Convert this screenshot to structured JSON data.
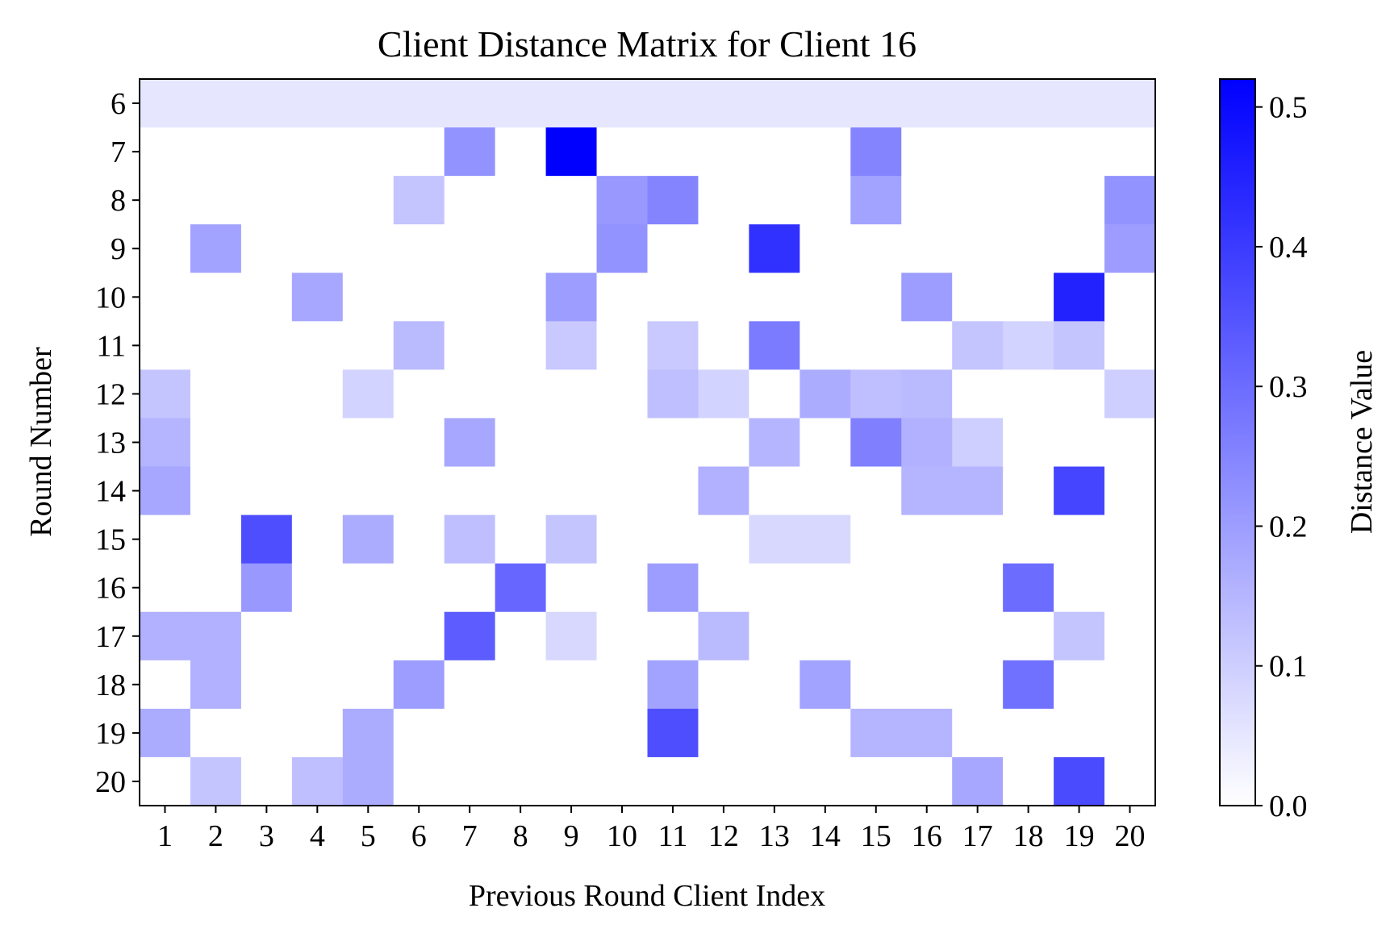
{
  "chart_data": {
    "type": "heatmap",
    "title": "Client Distance Matrix for Client 16",
    "xlabel": "Previous Round Client Index",
    "ylabel": "Round Number",
    "x_categories": [
      "1",
      "2",
      "3",
      "4",
      "5",
      "6",
      "7",
      "8",
      "9",
      "10",
      "11",
      "12",
      "13",
      "14",
      "15",
      "16",
      "17",
      "18",
      "19",
      "20"
    ],
    "y_categories": [
      "6",
      "7",
      "8",
      "9",
      "10",
      "11",
      "12",
      "13",
      "14",
      "15",
      "16",
      "17",
      "18",
      "19",
      "20"
    ],
    "values": [
      [
        0.05,
        0.05,
        0.05,
        0.05,
        0.05,
        0.05,
        0.05,
        0.05,
        0.05,
        0.05,
        0.05,
        0.05,
        0.05,
        0.05,
        0.05,
        0.05,
        0.05,
        0.05,
        0.05,
        0.05
      ],
      [
        0,
        0,
        0,
        0,
        0,
        0,
        0.22,
        0,
        0.52,
        0,
        0,
        0,
        0,
        0,
        0.25,
        0,
        0,
        0,
        0,
        0
      ],
      [
        0,
        0,
        0,
        0,
        0,
        0.12,
        0,
        0,
        0,
        0.21,
        0.25,
        0,
        0,
        0,
        0.19,
        0,
        0,
        0,
        0,
        0.22
      ],
      [
        0,
        0.19,
        0,
        0,
        0,
        0,
        0,
        0,
        0,
        0.22,
        0,
        0,
        0.42,
        0,
        0,
        0,
        0,
        0,
        0,
        0.2
      ],
      [
        0,
        0,
        0,
        0.18,
        0,
        0,
        0,
        0,
        0.2,
        0,
        0,
        0,
        0,
        0,
        0,
        0.2,
        0,
        0,
        0.45,
        0
      ],
      [
        0,
        0,
        0,
        0,
        0,
        0.14,
        0,
        0,
        0.11,
        0,
        0.11,
        0,
        0.27,
        0,
        0,
        0,
        0.12,
        0.09,
        0.12,
        0
      ],
      [
        0.12,
        0,
        0,
        0,
        0.09,
        0,
        0,
        0,
        0,
        0,
        0.13,
        0.09,
        0,
        0.17,
        0.13,
        0.14,
        0,
        0,
        0,
        0.1
      ],
      [
        0.15,
        0,
        0,
        0,
        0,
        0,
        0.18,
        0,
        0,
        0,
        0,
        0,
        0.15,
        0,
        0.26,
        0.16,
        0.1,
        0,
        0,
        0
      ],
      [
        0.18,
        0,
        0,
        0,
        0,
        0,
        0,
        0,
        0,
        0,
        0,
        0.16,
        0,
        0,
        0,
        0.15,
        0.15,
        0,
        0.38,
        0
      ],
      [
        0,
        0,
        0.36,
        0,
        0.17,
        0,
        0.13,
        0,
        0.12,
        0,
        0,
        0,
        0.08,
        0.08,
        0,
        0,
        0,
        0,
        0,
        0
      ],
      [
        0,
        0,
        0.21,
        0,
        0,
        0,
        0,
        0.31,
        0,
        0,
        0.2,
        0,
        0,
        0,
        0,
        0,
        0,
        0.3,
        0,
        0
      ],
      [
        0.16,
        0.16,
        0,
        0,
        0,
        0,
        0.33,
        0,
        0.08,
        0,
        0,
        0.14,
        0,
        0,
        0,
        0,
        0,
        0,
        0.12,
        0
      ],
      [
        0,
        0.16,
        0,
        0,
        0,
        0.2,
        0,
        0,
        0,
        0,
        0.19,
        0,
        0,
        0.19,
        0,
        0,
        0,
        0.29,
        0,
        0
      ],
      [
        0.17,
        0,
        0,
        0,
        0.17,
        0,
        0,
        0,
        0,
        0,
        0.36,
        0,
        0,
        0,
        0.15,
        0.15,
        0,
        0,
        0,
        0
      ],
      [
        0,
        0.12,
        0,
        0.13,
        0.17,
        0,
        0,
        0,
        0,
        0,
        0,
        0,
        0,
        0,
        0,
        0,
        0.18,
        0,
        0.37,
        0
      ]
    ],
    "colorbar": {
      "label": "Distance Value",
      "min": 0,
      "max": 0.52,
      "ticks": [
        0,
        0.1,
        0.2,
        0.3,
        0.4,
        0.5
      ],
      "tick_labels": [
        "0.0",
        "0.1",
        "0.2",
        "0.3",
        "0.4",
        "0.5"
      ],
      "color_low": "#ffffff",
      "color_high": "#0000ff"
    },
    "grid": false
  }
}
